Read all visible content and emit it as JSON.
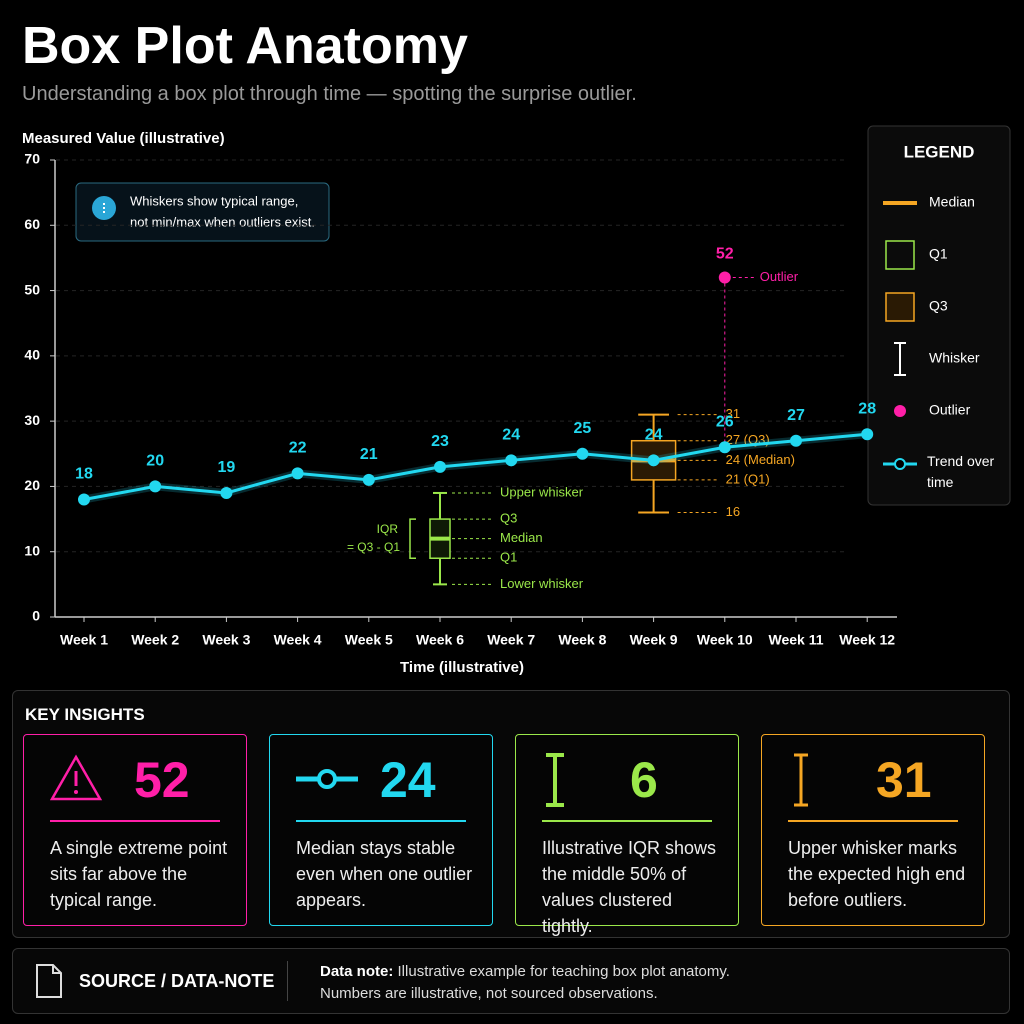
{
  "header": {
    "title": "Box Plot Anatomy",
    "subtitle": "Understanding a box plot through time — spotting the surprise outlier."
  },
  "chart_data": {
    "type": "line",
    "y_label": "Measured Value (illustrative)",
    "x_label": "Time (illustrative)",
    "categories": [
      "Week 1",
      "Week 2",
      "Week 3",
      "Week 4",
      "Week 5",
      "Week 6",
      "Week 7",
      "Week 8",
      "Week 9",
      "Week 10",
      "Week 11",
      "Week 12"
    ],
    "series": [
      {
        "name": "Trend over time",
        "color": "#22d8f0",
        "values": [
          18,
          20,
          19,
          22,
          21,
          23,
          24,
          25,
          24,
          26,
          27,
          28
        ]
      }
    ],
    "ylim": [
      0,
      70
    ],
    "yticks": [
      0,
      10,
      20,
      30,
      40,
      50,
      60,
      70
    ],
    "grid": true,
    "note": [
      "Whiskers show typical range,",
      "not min/max when outliers exist."
    ],
    "boxes": [
      {
        "category": "Week 6",
        "color": "#9be84a",
        "low": 5,
        "q1": 9,
        "median": 12,
        "q3": 15,
        "high": 19,
        "labels": {
          "high": "Upper whisker",
          "q3": "Q3",
          "median": "Median",
          "q1": "Q1",
          "low": "Lower whisker"
        },
        "iqr_label": [
          "IQR",
          "= Q3 - Q1"
        ]
      },
      {
        "category": "Week 9",
        "color": "#f5a623",
        "low": 16,
        "q1": 21,
        "median": 24,
        "q3": 27,
        "high": 31,
        "labels": {
          "high": "31",
          "q3": "27 (Q3)",
          "median": "24 (Median)",
          "q1": "21 (Q1)",
          "low": "16"
        }
      }
    ],
    "outlier": {
      "category": "Week 10",
      "value": 52,
      "label": "Outlier",
      "color": "#ff1fa8"
    },
    "legend": {
      "title": "LEGEND",
      "items": [
        "Median",
        "Q1",
        "Q3",
        "Whisker",
        "Outlier"
      ]
    }
  },
  "insights": {
    "title": "KEY INSIGHTS",
    "cards": [
      {
        "value": 52,
        "color": "#ff1fa8",
        "text": "A single extreme point sits far above the typical range."
      },
      {
        "value": 24,
        "color": "#22d8f0",
        "text": "Median stays stable even when one outlier appears."
      },
      {
        "value": 6,
        "color": "#9be84a",
        "text": "Illustrative IQR shows the middle 50% of values clustered tightly."
      },
      {
        "value": 31,
        "color": "#f5a623",
        "text": "Upper whisker marks the expected high end before outliers."
      }
    ]
  },
  "source": {
    "label": "SOURCE / DATA-NOTE",
    "note_label": "Data note:",
    "note": "Illustrative example for teaching box plot anatomy.",
    "note2": "Numbers are illustrative, not sourced observations."
  }
}
